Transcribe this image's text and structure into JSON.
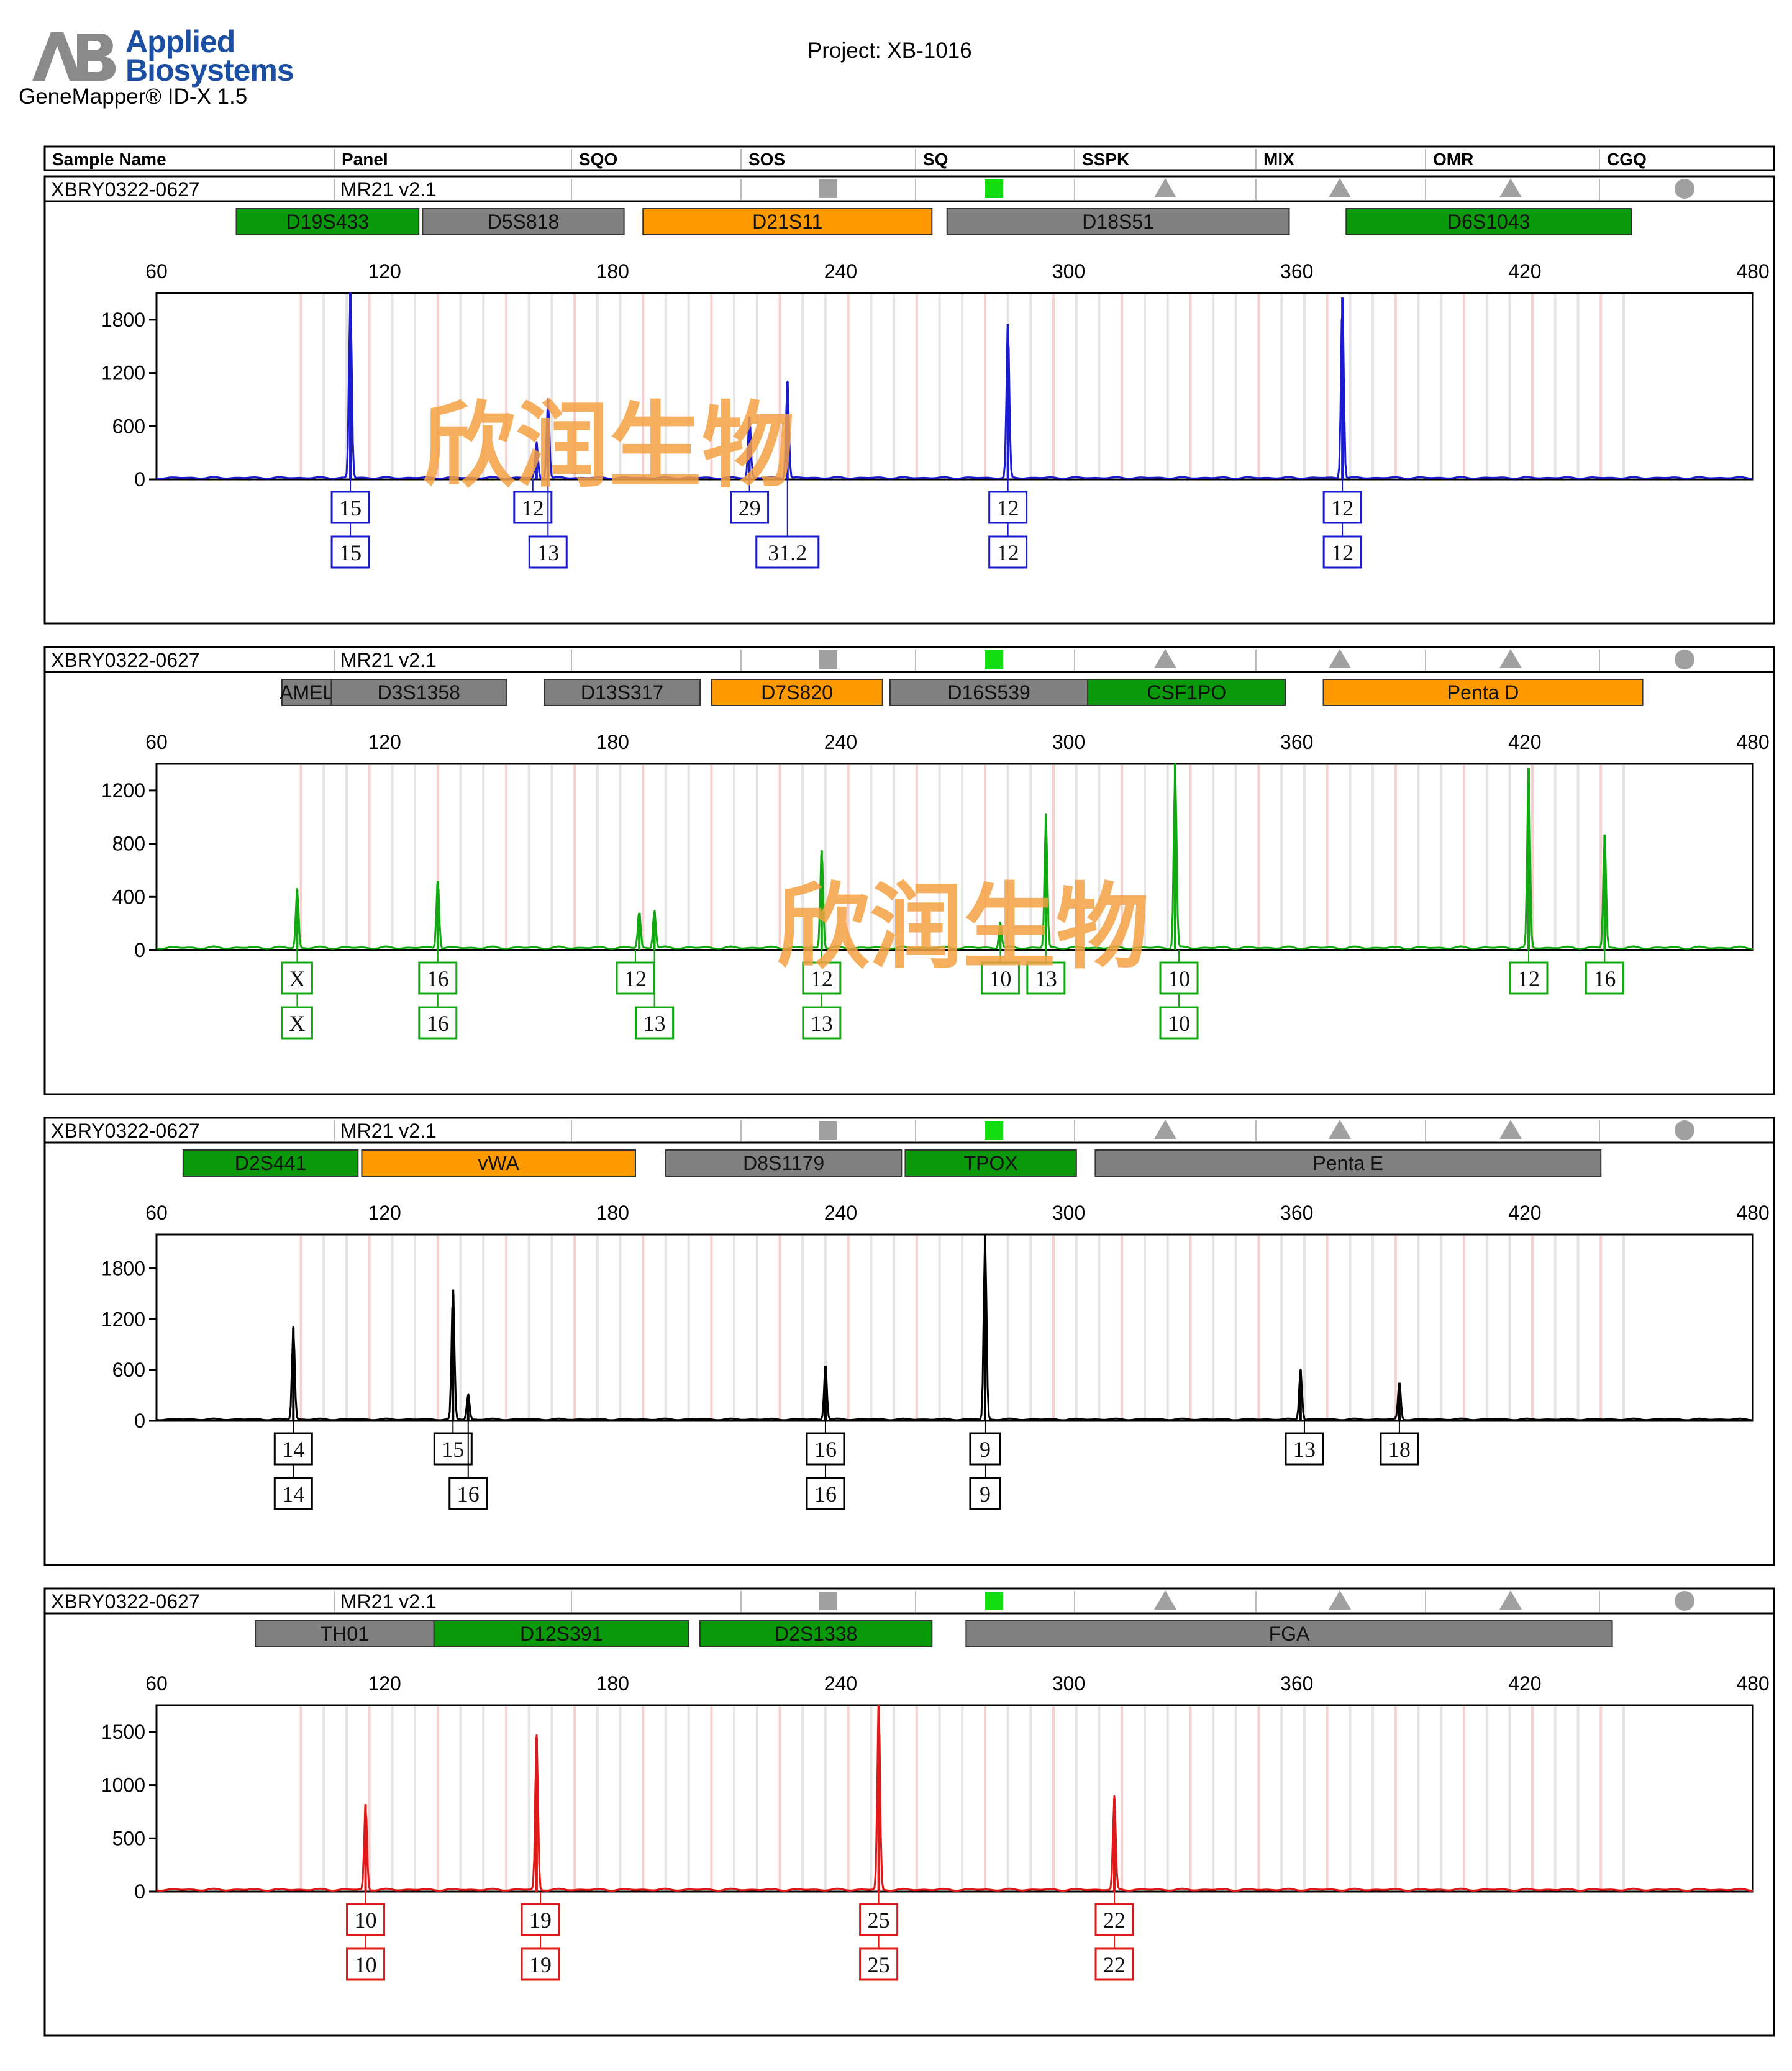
{
  "header": {
    "logo_lines": [
      "Applied",
      "Biosystems"
    ],
    "software": "GeneMapper® ID-X  1.5",
    "project": "Project: XB-1016"
  },
  "table_headers": [
    "Sample Name",
    "Panel",
    "SQO",
    "SOS",
    "SQ",
    "SSPK",
    "MIX",
    "OMR",
    "CGQ"
  ],
  "x_ticks": [
    60,
    120,
    180,
    240,
    300,
    360,
    420,
    480
  ],
  "watermark": "欣润生物",
  "colors": {
    "blue": "#1a1ad0",
    "green": "#12a812",
    "black": "#000000",
    "red": "#e01818",
    "marker_green": "#0a990a",
    "marker_gray": "#808080",
    "marker_orange": "#ff9900",
    "flag_gray": "#a0a0a0",
    "flag_green": "#11dd11",
    "watermark": "#f5a142"
  },
  "panels": [
    {
      "sample": "XBRY0322-0627",
      "panel": "MR21  v2.1",
      "flags": [
        "square-gray",
        "square-green",
        "triangle",
        "triangle",
        "triangle",
        "circle"
      ],
      "markers": [
        {
          "name": "D19S433",
          "start": 81,
          "end": 129,
          "color": "green"
        },
        {
          "name": "D5S818",
          "start": 130,
          "end": 183,
          "color": "gray"
        },
        {
          "name": "D21S11",
          "start": 188,
          "end": 264,
          "color": "orange"
        },
        {
          "name": "D18S51",
          "start": 268,
          "end": 358,
          "color": "gray"
        },
        {
          "name": "D6S1043",
          "start": 373,
          "end": 448,
          "color": "green"
        }
      ],
      "chart_data": {
        "type": "line",
        "color": "blue",
        "xlim": [
          60,
          480
        ],
        "ylim": [
          0,
          2100
        ],
        "y_ticks": [
          0,
          600,
          1200,
          1800
        ],
        "peaks": [
          [
            111,
            2100
          ],
          [
            160,
            400
          ],
          [
            163,
            900
          ],
          [
            216,
            700
          ],
          [
            226,
            1100
          ],
          [
            284,
            1750
          ],
          [
            372,
            2050
          ]
        ],
        "alleles": [
          {
            "x": 111,
            "top": "15",
            "bottom": "15"
          },
          {
            "x": 159,
            "top": "12",
            "bottom": null
          },
          {
            "x": 163,
            "top": null,
            "bottom": "13"
          },
          {
            "x": 216,
            "top": "29",
            "bottom": null
          },
          {
            "x": 226,
            "top": null,
            "bottom": "31.2"
          },
          {
            "x": 284,
            "top": "12",
            "bottom": "12"
          },
          {
            "x": 372,
            "top": "12",
            "bottom": "12"
          }
        ]
      }
    },
    {
      "sample": "XBRY0322-0627",
      "panel": "MR21  v2.1",
      "flags": [
        "square-gray",
        "square-green",
        "triangle",
        "triangle",
        "triangle",
        "circle"
      ],
      "markers": [
        {
          "name": "AMEL",
          "start": 93,
          "end": 106,
          "color": "gray"
        },
        {
          "name": "D3S1358",
          "start": 106,
          "end": 152,
          "color": "gray"
        },
        {
          "name": "D13S317",
          "start": 162,
          "end": 203,
          "color": "gray"
        },
        {
          "name": "D7S820",
          "start": 206,
          "end": 251,
          "color": "orange"
        },
        {
          "name": "D16S539",
          "start": 253,
          "end": 305,
          "color": "gray"
        },
        {
          "name": "CSF1PO",
          "start": 305,
          "end": 357,
          "color": "green"
        },
        {
          "name": "Penta D",
          "start": 367,
          "end": 451,
          "color": "orange"
        }
      ],
      "chart_data": {
        "type": "line",
        "color": "green",
        "xlim": [
          60,
          480
        ],
        "ylim": [
          0,
          1400
        ],
        "y_ticks": [
          0,
          400,
          800,
          1200
        ],
        "peaks": [
          [
            97,
            450
          ],
          [
            134,
            520
          ],
          [
            187,
            280
          ],
          [
            191,
            290
          ],
          [
            235,
            750
          ],
          [
            282,
            200
          ],
          [
            294,
            1000
          ],
          [
            328,
            1400
          ],
          [
            421,
            1370
          ],
          [
            441,
            870
          ]
        ],
        "alleles": [
          {
            "x": 97,
            "top": "X",
            "bottom": "X"
          },
          {
            "x": 134,
            "top": "16",
            "bottom": "16"
          },
          {
            "x": 186,
            "top": "12",
            "bottom": null
          },
          {
            "x": 191,
            "top": null,
            "bottom": "13"
          },
          {
            "x": 235,
            "top": "12",
            "bottom": "13"
          },
          {
            "x": 282,
            "top": "10",
            "bottom": null
          },
          {
            "x": 294,
            "top": "13",
            "bottom": null
          },
          {
            "x": 329,
            "top": "10",
            "bottom": "10"
          },
          {
            "x": 421,
            "top": "12",
            "bottom": null
          },
          {
            "x": 441,
            "top": "16",
            "bottom": null
          }
        ]
      }
    },
    {
      "sample": "XBRY0322-0627",
      "panel": "MR21  v2.1",
      "flags": [
        "square-gray",
        "square-green",
        "triangle",
        "triangle",
        "triangle",
        "circle"
      ],
      "markers": [
        {
          "name": "D2S441",
          "start": 67,
          "end": 113,
          "color": "green"
        },
        {
          "name": "vWA",
          "start": 114,
          "end": 186,
          "color": "orange"
        },
        {
          "name": "D8S1179",
          "start": 194,
          "end": 256,
          "color": "gray"
        },
        {
          "name": "TPOX",
          "start": 257,
          "end": 302,
          "color": "green"
        },
        {
          "name": "Penta E",
          "start": 307,
          "end": 440,
          "color": "gray"
        }
      ],
      "chart_data": {
        "type": "line",
        "color": "black",
        "xlim": [
          60,
          480
        ],
        "ylim": [
          0,
          2200
        ],
        "y_ticks": [
          0,
          600,
          1200,
          1800
        ],
        "peaks": [
          [
            96,
            1100
          ],
          [
            138,
            1550
          ],
          [
            142,
            300
          ],
          [
            236,
            650
          ],
          [
            278,
            2200
          ],
          [
            361,
            600
          ],
          [
            387,
            450
          ]
        ],
        "alleles": [
          {
            "x": 96,
            "top": "14",
            "bottom": "14"
          },
          {
            "x": 138,
            "top": "15",
            "bottom": null
          },
          {
            "x": 142,
            "top": null,
            "bottom": "16"
          },
          {
            "x": 236,
            "top": "16",
            "bottom": "16"
          },
          {
            "x": 278,
            "top": "9",
            "bottom": "9"
          },
          {
            "x": 362,
            "top": "13",
            "bottom": null
          },
          {
            "x": 387,
            "top": "18",
            "bottom": null
          }
        ]
      }
    },
    {
      "sample": "XBRY0322-0627",
      "panel": "MR21  v2.1",
      "flags": [
        "square-gray",
        "square-green",
        "triangle",
        "triangle",
        "triangle",
        "circle"
      ],
      "markers": [
        {
          "name": "TH01",
          "start": 86,
          "end": 133,
          "color": "gray"
        },
        {
          "name": "D12S391",
          "start": 133,
          "end": 200,
          "color": "green"
        },
        {
          "name": "D2S1338",
          "start": 203,
          "end": 264,
          "color": "green"
        },
        {
          "name": "FGA",
          "start": 273,
          "end": 443,
          "color": "gray"
        }
      ],
      "chart_data": {
        "type": "line",
        "color": "red",
        "xlim": [
          60,
          480
        ],
        "ylim": [
          0,
          1750
        ],
        "y_ticks": [
          0,
          500,
          1000,
          1500
        ],
        "y_tick_labels": [
          "0",
          "500",
          "1000",
          "1500"
        ],
        "peaks": [
          [
            115,
            820
          ],
          [
            160,
            1450
          ],
          [
            250,
            1750
          ],
          [
            312,
            870
          ]
        ],
        "alleles": [
          {
            "x": 115,
            "top": "10",
            "bottom": "10"
          },
          {
            "x": 161,
            "top": "19",
            "bottom": "19"
          },
          {
            "x": 250,
            "top": "25",
            "bottom": "25"
          },
          {
            "x": 312,
            "top": "22",
            "bottom": "22"
          }
        ]
      }
    }
  ]
}
